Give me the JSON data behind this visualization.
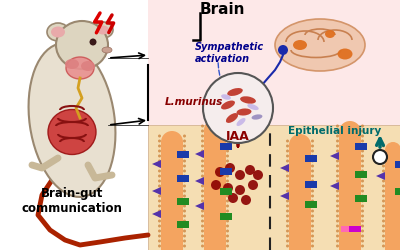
{
  "bg_color": "#ffffff",
  "pink_bg": "#fde8e8",
  "tan_bg": "#f5deb3",
  "gut_color": "#f4a460",
  "gut_dot_color": "#cd853f",
  "bacteria_red": "#c0392b",
  "bacteria_purple": "#9b8fc0",
  "bacteria_lavender": "#c8b8e8",
  "arrow_dark": "#8b0000",
  "dashed_line_color": "#333333",
  "iaa_dots_color": "#8b0000",
  "label_brain": "Brain",
  "label_sympathetic": "Sympathetic\nactivation",
  "label_lmurinus": "L.murinus",
  "label_iaa": "IAA",
  "label_epithelial": "Epithelial injury",
  "label_braingut": "Brain-gut\ncommunication",
  "blue_rect_color": "#1a3aaa",
  "green_rect_color": "#228b22",
  "purple_tri_color": "#5533aa",
  "pink_rect_color": "#ff69b4",
  "magenta_rect_color": "#cc00cc",
  "teal_arrow": "#006b6b"
}
